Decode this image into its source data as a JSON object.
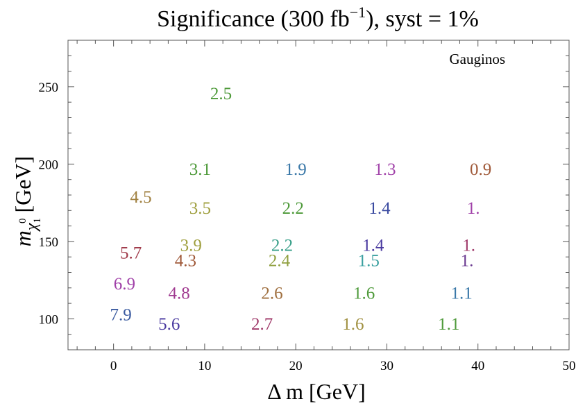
{
  "chart_data": {
    "type": "scatter",
    "title": {
      "main": "Significance (300 fb",
      "sup": "−1",
      "rest": "), syst = 1%"
    },
    "xlabel": {
      "main": "Δ m [GeV]"
    },
    "ylabel": {
      "m": "m",
      "chi": "χ",
      "sub": "1",
      "sup": "0",
      "rest": " [GeV]"
    },
    "annotation": "Gauginos",
    "xlim": [
      -5,
      50
    ],
    "ylim": [
      80,
      280
    ],
    "xticks": [
      0,
      10,
      20,
      30,
      40,
      50
    ],
    "yticks": [
      100,
      150,
      200,
      250
    ],
    "xtick_labels": [
      "0",
      "10",
      "20",
      "30",
      "40",
      "50"
    ],
    "ytick_labels": [
      "100",
      "150",
      "200",
      "250"
    ],
    "grid": false,
    "points": [
      {
        "x": 11.8,
        "y": 246,
        "label": "2.5",
        "color": "#4e9a3a"
      },
      {
        "x": 9.5,
        "y": 197,
        "label": "3.1",
        "color": "#4e9a3a"
      },
      {
        "x": 20.0,
        "y": 197,
        "label": "1.9",
        "color": "#3a78a8"
      },
      {
        "x": 29.8,
        "y": 197,
        "label": "1.3",
        "color": "#a040a8"
      },
      {
        "x": 40.3,
        "y": 197,
        "label": "0.9",
        "color": "#a05a3a"
      },
      {
        "x": 3.0,
        "y": 179,
        "label": "4.5",
        "color": "#a08040"
      },
      {
        "x": 9.5,
        "y": 172,
        "label": "3.5",
        "color": "#a0a040"
      },
      {
        "x": 19.7,
        "y": 172,
        "label": "2.2",
        "color": "#4e9a3a"
      },
      {
        "x": 29.2,
        "y": 172,
        "label": "1.4",
        "color": "#3a4aa0"
      },
      {
        "x": 39.5,
        "y": 172,
        "label": "1.",
        "color": "#a040a8"
      },
      {
        "x": 1.9,
        "y": 143,
        "label": "5.7",
        "color": "#a03a4a"
      },
      {
        "x": 8.5,
        "y": 148,
        "label": "3.9",
        "color": "#a0a040"
      },
      {
        "x": 18.5,
        "y": 148,
        "label": "2.2",
        "color": "#3aa08a"
      },
      {
        "x": 28.5,
        "y": 148,
        "label": "1.4",
        "color": "#4a3aa0"
      },
      {
        "x": 39.0,
        "y": 148,
        "label": "1.",
        "color": "#a03a6a"
      },
      {
        "x": 7.9,
        "y": 138,
        "label": "4.3",
        "color": "#a05a3a"
      },
      {
        "x": 18.2,
        "y": 138,
        "label": "2.4",
        "color": "#90a040"
      },
      {
        "x": 28.0,
        "y": 138,
        "label": "1.5",
        "color": "#3aa0a0"
      },
      {
        "x": 38.8,
        "y": 138,
        "label": "1.",
        "color": "#6a3a90"
      },
      {
        "x": 1.2,
        "y": 123,
        "label": "6.9",
        "color": "#a040a8"
      },
      {
        "x": 7.2,
        "y": 117,
        "label": "4.8",
        "color": "#a03a90"
      },
      {
        "x": 17.4,
        "y": 117,
        "label": "2.6",
        "color": "#a07040"
      },
      {
        "x": 27.5,
        "y": 117,
        "label": "1.6",
        "color": "#4e9a3a"
      },
      {
        "x": 38.2,
        "y": 117,
        "label": "1.1",
        "color": "#3a78a8"
      },
      {
        "x": 0.8,
        "y": 103,
        "label": "7.9",
        "color": "#3a5aa0"
      },
      {
        "x": 6.1,
        "y": 97,
        "label": "5.6",
        "color": "#4a3aa0"
      },
      {
        "x": 16.3,
        "y": 97,
        "label": "2.7",
        "color": "#a03a6a"
      },
      {
        "x": 26.3,
        "y": 97,
        "label": "1.6",
        "color": "#a09040"
      },
      {
        "x": 36.8,
        "y": 97,
        "label": "1.1",
        "color": "#4e9a3a"
      }
    ]
  }
}
